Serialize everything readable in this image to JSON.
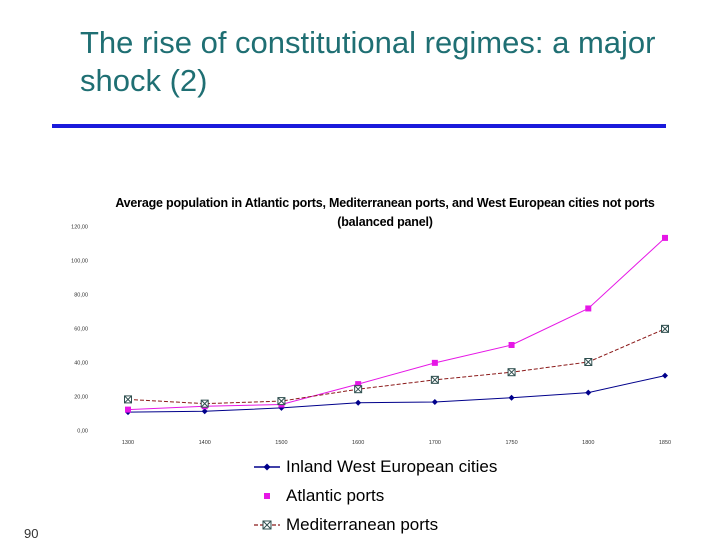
{
  "slide": {
    "title": "The rise of constitutional regimes: a major shock (2)",
    "page_number": "90",
    "rule_color": "#1a1adb",
    "title_color": "#1f6f73"
  },
  "chart_data": {
    "type": "line",
    "title": "Average population in Atlantic ports, Mediterranean ports, and West European cities not ports (balanced panel)",
    "xlabel": "",
    "ylabel": "",
    "categories": [
      "1300",
      "1400",
      "1500",
      "1600",
      "1700",
      "1750",
      "1800",
      "1850"
    ],
    "ylim": [
      0,
      120
    ],
    "yticks": [
      0,
      20,
      40,
      60,
      80,
      100,
      120
    ],
    "ytick_labels": [
      "0,00",
      "20,00",
      "40,00",
      "60,00",
      "80,00",
      "100,00",
      "120,00"
    ],
    "grid": false,
    "legend_position": "bottom",
    "series": [
      {
        "name": "Inland West European cities",
        "values": [
          10.5,
          11,
          13,
          16,
          16.5,
          19,
          22,
          32
        ],
        "color": "#00008b",
        "marker": "diamond",
        "dash": "solid"
      },
      {
        "name": "Atlantic ports",
        "values": [
          12,
          14,
          15,
          27,
          39.5,
          50,
          71.5,
          113
        ],
        "color": "#e617e6",
        "marker": "square",
        "dash": "solid"
      },
      {
        "name": "Mediterranean ports",
        "values": [
          18,
          15.5,
          17,
          24,
          29.5,
          34,
          40,
          59.5
        ],
        "color": "#8b1a1a",
        "marker": "xbox",
        "dash": "dashed"
      }
    ]
  }
}
